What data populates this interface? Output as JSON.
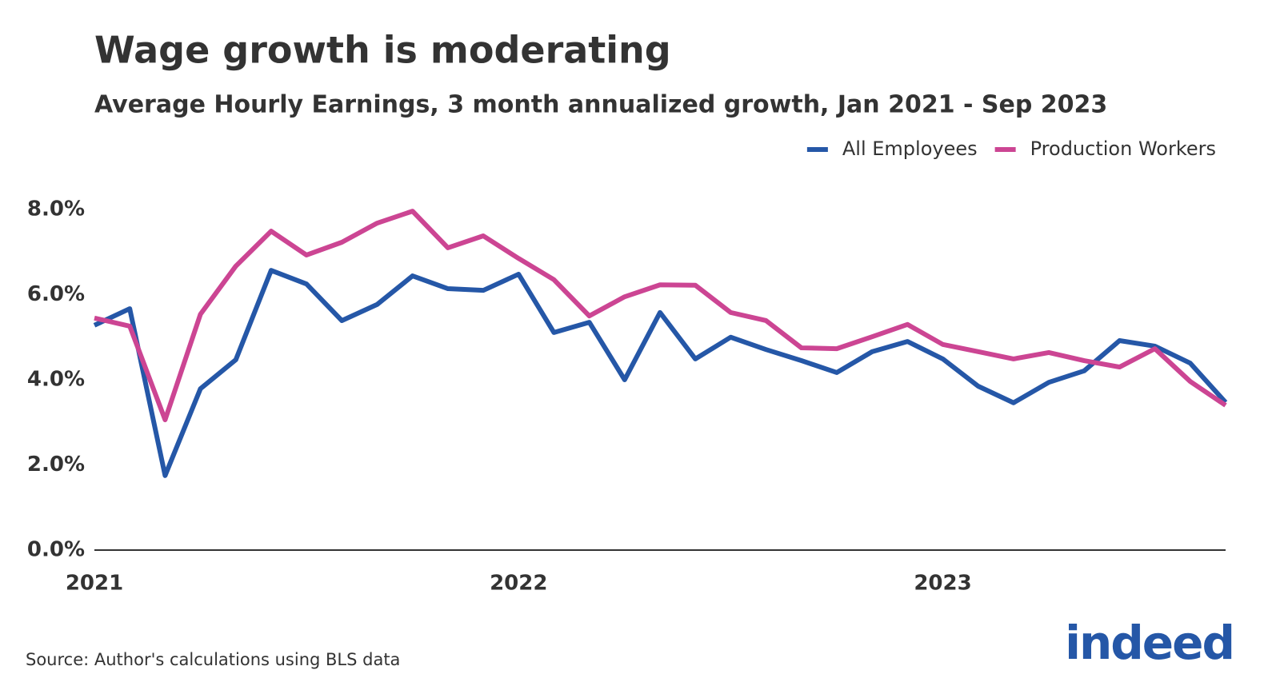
{
  "chart_data": {
    "type": "line",
    "title": "Wage growth is moderating",
    "subtitle": "Average Hourly Earnings, 3 month annualized growth, Jan 2021 - Sep 2023",
    "source": "Source: Author's calculations using BLS data",
    "logo": "indeed",
    "categories": [
      "2021",
      null,
      null,
      null,
      null,
      null,
      null,
      null,
      null,
      null,
      null,
      null,
      "2022",
      null,
      null,
      null,
      null,
      null,
      null,
      null,
      null,
      null,
      null,
      null,
      "2023",
      null,
      null,
      null,
      null,
      null,
      null,
      null,
      null
    ],
    "series": [
      {
        "name": "All Employees",
        "color": "#2557a7",
        "values": [
          5.28,
          5.67,
          1.75,
          3.79,
          4.47,
          6.57,
          6.25,
          5.39,
          5.77,
          6.44,
          6.14,
          6.1,
          6.48,
          5.11,
          5.35,
          4.0,
          5.58,
          4.49,
          5.0,
          4.71,
          4.45,
          4.17,
          4.66,
          4.9,
          4.49,
          3.85,
          3.46,
          3.94,
          4.21,
          4.92,
          4.79,
          4.39,
          3.47
        ]
      },
      {
        "name": "Production Workers",
        "color": "#cc4593",
        "values": [
          5.45,
          5.26,
          3.06,
          5.54,
          6.67,
          7.49,
          6.93,
          7.23,
          7.68,
          7.96,
          7.1,
          7.38,
          6.85,
          6.35,
          5.5,
          5.95,
          6.23,
          6.22,
          5.58,
          5.39,
          4.75,
          4.73,
          5.01,
          5.3,
          4.83,
          4.66,
          4.49,
          4.64,
          4.45,
          4.3,
          4.73,
          3.96,
          3.4
        ]
      }
    ],
    "ylim": [
      0,
      8
    ],
    "yticks": [
      {
        "value": 0,
        "label": "0.0%"
      },
      {
        "value": 2,
        "label": "2.0%"
      },
      {
        "value": 4,
        "label": "4.0%"
      },
      {
        "value": 6,
        "label": "6.0%"
      },
      {
        "value": 8,
        "label": "8.0%"
      }
    ],
    "grid": false,
    "legend": "top-right"
  }
}
